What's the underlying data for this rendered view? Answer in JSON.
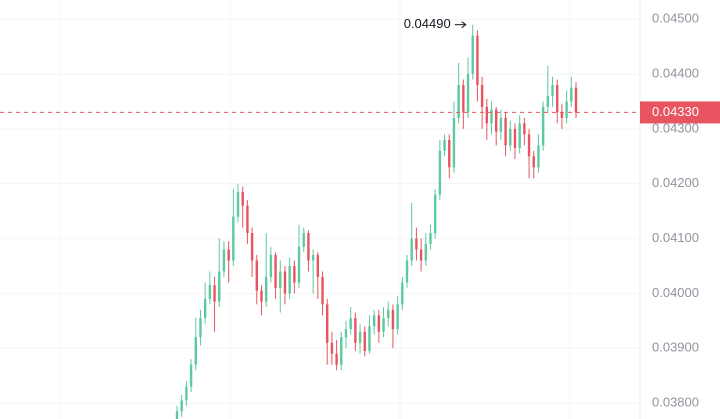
{
  "chart_data": {
    "type": "candlestick",
    "open": [
      0.0377,
      0.03785,
      0.03805,
      0.0383,
      0.0387,
      0.0392,
      0.03955,
      0.0399,
      0.04015,
      0.03985,
      0.0404,
      0.0408,
      0.0406,
      0.0414,
      0.04185,
      0.0416,
      0.0411,
      0.0406,
      0.04005,
      0.03985,
      0.0403,
      0.0407,
      0.0401,
      0.0404,
      0.04,
      0.0405,
      0.0402,
      0.04085,
      0.0411,
      0.0406,
      0.0407,
      0.0403,
      0.0398,
      0.0391,
      0.0389,
      0.0387,
      0.0392,
      0.03935,
      0.03955,
      0.0391,
      0.0393,
      0.03895,
      0.0394,
      0.0396,
      0.0393,
      0.03955,
      0.0397,
      0.03935,
      0.0398,
      0.0402,
      0.0406,
      0.041,
      0.0408,
      0.0406,
      0.0409,
      0.0411,
      0.0418,
      0.0426,
      0.0428,
      0.0423,
      0.0432,
      0.0438,
      0.0433,
      0.044,
      0.0447,
      0.0438,
      0.0434,
      0.0431,
      0.04335,
      0.04295,
      0.0432,
      0.0427,
      0.043,
      0.04265,
      0.0431,
      0.0429,
      0.0425,
      0.0423,
      0.0427,
      0.0434,
      0.0436,
      0.0438,
      0.0433,
      0.0432,
      0.0435,
      0.04375
    ],
    "high": [
      0.03795,
      0.03815,
      0.0384,
      0.0388,
      0.03955,
      0.0397,
      0.0402,
      0.0404,
      0.0403,
      0.041,
      0.04095,
      0.04095,
      0.0419,
      0.042,
      0.04195,
      0.0417,
      0.0412,
      0.0407,
      0.04015,
      0.0411,
      0.04085,
      0.04075,
      0.0406,
      0.0405,
      0.04065,
      0.0406,
      0.04125,
      0.0412,
      0.04115,
      0.0408,
      0.04075,
      0.0404,
      0.0399,
      0.0393,
      0.03915,
      0.0393,
      0.0395,
      0.03975,
      0.03965,
      0.03945,
      0.0394,
      0.0396,
      0.0397,
      0.0397,
      0.03975,
      0.03985,
      0.0398,
      0.03995,
      0.0403,
      0.0407,
      0.04165,
      0.0412,
      0.041,
      0.0411,
      0.04125,
      0.0419,
      0.0428,
      0.0429,
      0.0429,
      0.0435,
      0.0442,
      0.0439,
      0.0443,
      0.0449,
      0.0448,
      0.04395,
      0.04355,
      0.0435,
      0.0434,
      0.04335,
      0.0433,
      0.04315,
      0.0431,
      0.04325,
      0.0432,
      0.043,
      0.0426,
      0.0429,
      0.0435,
      0.04415,
      0.04395,
      0.0439,
      0.04345,
      0.0437,
      0.04395,
      0.04385
    ],
    "low": [
      0.03765,
      0.03775,
      0.03795,
      0.0382,
      0.0386,
      0.03905,
      0.03945,
      0.0398,
      0.0393,
      0.03975,
      0.0403,
      0.0402,
      0.0405,
      0.0413,
      0.0412,
      0.0409,
      0.0403,
      0.0398,
      0.0396,
      0.03975,
      0.0402,
      0.0399,
      0.03965,
      0.0398,
      0.0399,
      0.04,
      0.0401,
      0.04075,
      0.0404,
      0.04,
      0.0399,
      0.0396,
      0.0387,
      0.0387,
      0.0386,
      0.0386,
      0.039,
      0.03925,
      0.03895,
      0.0389,
      0.03885,
      0.0389,
      0.03925,
      0.0391,
      0.0392,
      0.0394,
      0.039,
      0.03925,
      0.0397,
      0.0401,
      0.0405,
      0.0406,
      0.0404,
      0.0405,
      0.0408,
      0.041,
      0.0417,
      0.0425,
      0.0421,
      0.0422,
      0.0431,
      0.043,
      0.0432,
      0.0439,
      0.0435,
      0.043,
      0.0428,
      0.0429,
      0.0427,
      0.0428,
      0.0425,
      0.0426,
      0.04245,
      0.04255,
      0.0427,
      0.0421,
      0.0421,
      0.0422,
      0.0426,
      0.0433,
      0.0434,
      0.0431,
      0.043,
      0.0431,
      0.0434,
      0.0432
    ],
    "close": [
      0.03785,
      0.03805,
      0.0383,
      0.0387,
      0.0392,
      0.03955,
      0.0399,
      0.04015,
      0.03985,
      0.0404,
      0.0408,
      0.0406,
      0.0414,
      0.04185,
      0.0416,
      0.0411,
      0.0406,
      0.04005,
      0.03985,
      0.0403,
      0.0407,
      0.0401,
      0.0404,
      0.04,
      0.0405,
      0.0402,
      0.04085,
      0.0411,
      0.0406,
      0.0407,
      0.0403,
      0.0398,
      0.0391,
      0.0389,
      0.0387,
      0.0392,
      0.03935,
      0.03955,
      0.0391,
      0.0393,
      0.03895,
      0.0394,
      0.0396,
      0.0393,
      0.03955,
      0.0397,
      0.03935,
      0.0398,
      0.0402,
      0.0406,
      0.041,
      0.0408,
      0.0406,
      0.0409,
      0.0411,
      0.0418,
      0.0426,
      0.0428,
      0.0423,
      0.0432,
      0.0438,
      0.0433,
      0.044,
      0.0447,
      0.0438,
      0.0434,
      0.0431,
      0.04335,
      0.04295,
      0.0432,
      0.0427,
      0.043,
      0.04265,
      0.0431,
      0.0429,
      0.0425,
      0.0423,
      0.0427,
      0.0434,
      0.0436,
      0.0438,
      0.0433,
      0.0432,
      0.0435,
      0.04375,
      0.0433
    ],
    "up_color": "#5cc9a0",
    "down_color": "#e8545f",
    "ylim": [
      0.03771,
      0.04535
    ],
    "yticks": [
      {
        "value": 0.038,
        "label": "0.03800"
      },
      {
        "value": 0.039,
        "label": "0.03900"
      },
      {
        "value": 0.04,
        "label": "0.04000"
      },
      {
        "value": 0.041,
        "label": "0.04100"
      },
      {
        "value": 0.042,
        "label": "0.04200"
      },
      {
        "value": 0.043,
        "label": "0.04300"
      },
      {
        "value": 0.044,
        "label": "0.04400"
      },
      {
        "value": 0.045,
        "label": "0.04500"
      }
    ],
    "grid": true,
    "last_price": {
      "value": 0.0433,
      "label": "0.04330"
    },
    "max_annotation": {
      "value": 0.0449,
      "label": "0.04490"
    }
  }
}
